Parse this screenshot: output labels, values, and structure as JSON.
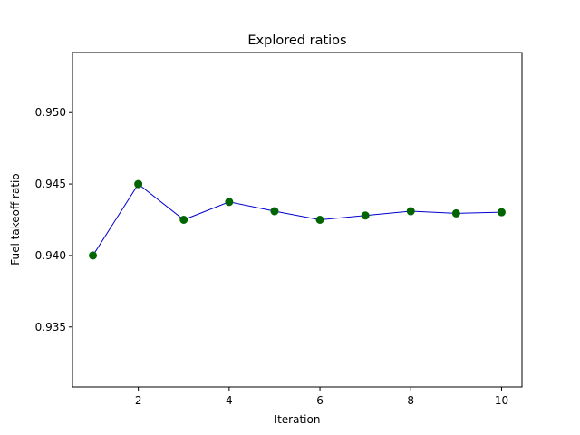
{
  "chart_data": {
    "type": "line",
    "title": "Explored ratios",
    "xlabel": "Iteration",
    "ylabel": "Fuel takeoff ratio",
    "xlim": [
      0.55,
      10.45
    ],
    "ylim": [
      0.9308,
      0.9542
    ],
    "xticks": [
      2,
      4,
      6,
      8,
      10
    ],
    "yticks": [
      0.935,
      0.94,
      0.945,
      0.95
    ],
    "ytick_labels": [
      "0.935",
      "0.940",
      "0.945",
      "0.950"
    ],
    "grid": false,
    "series": [
      {
        "x": [
          1,
          2,
          3,
          4,
          5,
          6,
          7,
          8,
          9,
          10
        ],
        "y": [
          0.94,
          0.945,
          0.9425,
          0.94375,
          0.9431,
          0.9425,
          0.9428,
          0.9431,
          0.94295,
          0.94303
        ],
        "line_color": "#0000cc",
        "marker_color": "#006400"
      }
    ]
  }
}
